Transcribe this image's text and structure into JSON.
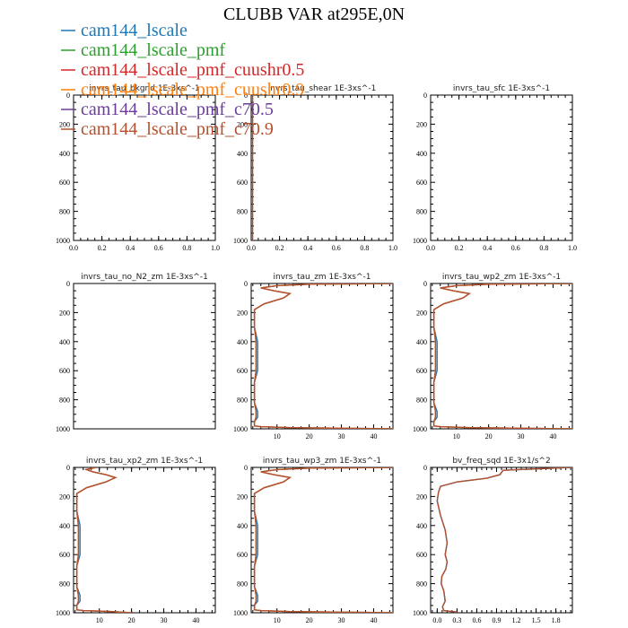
{
  "figure": {
    "title": "CLUBB VAR at295E,0N"
  },
  "colors": {
    "cam144_lscale": "#1f77b4",
    "cam144_lscale_pmf": "#2ca02c",
    "cam144_lscale_pmf_cuushr0.5": "#d62728",
    "cam144_lscale_pmf_cuushr0.9": "#ff7f0e",
    "cam144_lscale_pmf_c70.5": "#6a3d9a",
    "cam144_lscale_pmf_c70.9": "#b5502f"
  },
  "legend": [
    {
      "name": "cam144_lscale",
      "color": "#1f77b4"
    },
    {
      "name": "cam144_lscale_pmf",
      "color": "#2ca02c"
    },
    {
      "name": "cam144_lscale_pmf_cuushr0.5",
      "color": "#d62728"
    },
    {
      "name": "cam144_lscale_pmf_cuushr0.9",
      "color": "#ff7f0e"
    },
    {
      "name": "cam144_lscale_pmf_c70.5",
      "color": "#6a3d9a"
    },
    {
      "name": "cam144_lscale_pmf_c70.9",
      "color": "#b5502f"
    }
  ],
  "chart_data": [
    {
      "type": "line",
      "title": "invrs_tau_bkgnd   1E-3xs^-1",
      "xlim": [
        0,
        1
      ],
      "ylim": [
        1000,
        0
      ],
      "xticks": [
        "0.0",
        "0.2",
        "0.4",
        "0.6",
        "0.8",
        "1.0"
      ],
      "yticks": [
        "0",
        "200",
        "400",
        "600",
        "800",
        "1000"
      ],
      "series": []
    },
    {
      "type": "line",
      "title": "invrs_tau_shear   1E-3xs^-1",
      "xlim": [
        0,
        1
      ],
      "ylim": [
        1000,
        0
      ],
      "xticks": [
        "0.0",
        "0.2",
        "0.4",
        "0.6",
        "0.8",
        "1.0"
      ],
      "yticks": [
        "0",
        "200",
        "400",
        "600",
        "800",
        "1000"
      ],
      "series": [
        {
          "name": "cam144_lscale_pmf_c70.9",
          "x": [
            0.01,
            0.01
          ],
          "y": [
            0,
            1000
          ]
        }
      ]
    },
    {
      "type": "line",
      "title": "invrs_tau_sfc   1E-3xs^-1",
      "xlim": [
        0,
        1
      ],
      "ylim": [
        1000,
        0
      ],
      "xticks": [
        "0.0",
        "0.2",
        "0.4",
        "0.6",
        "0.8",
        "1.0"
      ],
      "yticks": [
        "0",
        "200",
        "400",
        "600",
        "800",
        "1000"
      ],
      "series": []
    },
    {
      "type": "line",
      "title": "invrs_tau_no_N2_zm   1E-3xs^-1",
      "xlim": [
        0,
        1
      ],
      "ylim": [
        1000,
        0
      ],
      "xticks": [],
      "yticks": [
        "0",
        "200",
        "400",
        "600",
        "800",
        "1000"
      ],
      "series": []
    },
    {
      "type": "line",
      "title": "invrs_tau_zm   1E-3xs^-1",
      "xlim": [
        2,
        46
      ],
      "ylim": [
        1000,
        0
      ],
      "xticks": [
        "10",
        "20",
        "30",
        "40"
      ],
      "yticks": [
        "0",
        "200",
        "400",
        "600",
        "800",
        "1000"
      ],
      "series": [
        {
          "name": "cam144_lscale",
          "x": [
            46,
            20,
            10,
            5,
            9,
            14,
            12,
            6,
            3,
            3,
            3,
            4,
            4,
            4,
            3,
            3,
            3,
            4,
            4,
            3,
            3,
            3,
            5,
            14,
            46
          ],
          "y": [
            0,
            5,
            15,
            30,
            50,
            70,
            100,
            140,
            180,
            220,
            300,
            400,
            500,
            600,
            680,
            760,
            820,
            880,
            920,
            950,
            970,
            980,
            985,
            992,
            1000
          ]
        },
        {
          "name": "cam144_lscale_pmf_cuushr0.9",
          "x": [
            46,
            20,
            10,
            5,
            9,
            14,
            12,
            6,
            3,
            3,
            3,
            3.5,
            3.5,
            3.5,
            3,
            3,
            3,
            3.5,
            3.5,
            3,
            3,
            3,
            5,
            14,
            46
          ],
          "y": [
            0,
            5,
            15,
            30,
            50,
            70,
            100,
            140,
            180,
            220,
            300,
            400,
            500,
            600,
            680,
            760,
            820,
            880,
            920,
            950,
            970,
            980,
            985,
            992,
            1000
          ]
        },
        {
          "name": "cam144_lscale_pmf_c70.9",
          "x": [
            46,
            20,
            10,
            5,
            9,
            14,
            12,
            6,
            3,
            3,
            3,
            3.5,
            3.5,
            3.5,
            3,
            3,
            3,
            3.5,
            3.5,
            3,
            3,
            3,
            5,
            14,
            46
          ],
          "y": [
            0,
            5,
            15,
            30,
            50,
            70,
            100,
            140,
            180,
            220,
            300,
            400,
            500,
            600,
            680,
            760,
            820,
            880,
            920,
            950,
            970,
            980,
            985,
            992,
            1000
          ]
        }
      ]
    },
    {
      "type": "line",
      "title": "invrs_tau_wp2_zm   1E-3xs^-1",
      "xlim": [
        2,
        46
      ],
      "ylim": [
        1000,
        0
      ],
      "xticks": [
        "10",
        "20",
        "30",
        "40"
      ],
      "yticks": [
        "0",
        "200",
        "400",
        "600",
        "800",
        "1000"
      ],
      "series": [
        {
          "name": "cam144_lscale",
          "x": [
            46,
            20,
            10,
            5,
            9,
            14,
            12,
            6,
            3,
            3,
            3,
            4,
            4,
            4,
            3,
            3,
            3,
            4,
            4,
            3,
            3,
            3,
            5,
            14,
            46
          ],
          "y": [
            0,
            5,
            15,
            30,
            50,
            70,
            100,
            140,
            180,
            220,
            300,
            400,
            500,
            600,
            680,
            760,
            820,
            880,
            920,
            950,
            970,
            980,
            985,
            992,
            1000
          ]
        },
        {
          "name": "cam144_lscale_pmf_cuushr0.9",
          "x": [
            46,
            20,
            10,
            5,
            9,
            14,
            12,
            6,
            3,
            3,
            3,
            3.5,
            3.5,
            3.5,
            3,
            3,
            3,
            3.5,
            3.5,
            3,
            3,
            3,
            5,
            14,
            46
          ],
          "y": [
            0,
            5,
            15,
            30,
            50,
            70,
            100,
            140,
            180,
            220,
            300,
            400,
            500,
            600,
            680,
            760,
            820,
            880,
            920,
            950,
            970,
            980,
            985,
            992,
            1000
          ]
        },
        {
          "name": "cam144_lscale_pmf_c70.9",
          "x": [
            46,
            20,
            10,
            5,
            9,
            14,
            12,
            6,
            3,
            3,
            3,
            3.5,
            3.5,
            3.5,
            3,
            3,
            3,
            3.5,
            3.5,
            3,
            3,
            3,
            5,
            14,
            46
          ],
          "y": [
            0,
            5,
            15,
            30,
            50,
            70,
            100,
            140,
            180,
            220,
            300,
            400,
            500,
            600,
            680,
            760,
            820,
            880,
            920,
            950,
            970,
            980,
            985,
            992,
            1000
          ]
        }
      ]
    },
    {
      "type": "line",
      "title": "invrs_tau_xp2_zm   1E-3xs^-1",
      "xlim": [
        2,
        46
      ],
      "ylim": [
        1000,
        0
      ],
      "xticks": [
        "10",
        "20",
        "30",
        "40"
      ],
      "yticks": [
        "0",
        "200",
        "400",
        "600",
        "800",
        "1000"
      ],
      "series": [
        {
          "name": "cam144_lscale",
          "x": [
            9,
            8,
            6,
            8,
            12,
            15,
            12,
            6,
            3,
            3,
            3,
            4,
            4,
            4,
            3,
            3,
            3,
            4,
            4,
            3,
            3,
            3,
            5,
            14,
            20
          ],
          "y": [
            0,
            5,
            15,
            30,
            50,
            70,
            100,
            140,
            180,
            220,
            300,
            400,
            500,
            600,
            680,
            760,
            820,
            880,
            920,
            950,
            970,
            980,
            985,
            992,
            1000
          ]
        },
        {
          "name": "cam144_lscale_pmf_cuushr0.9",
          "x": [
            9,
            8,
            6,
            8,
            12,
            15,
            12,
            6,
            3,
            3,
            3,
            3.5,
            3.5,
            3.5,
            3,
            3,
            3,
            3.5,
            3.5,
            3,
            3,
            3,
            5,
            14,
            20
          ],
          "y": [
            0,
            5,
            15,
            30,
            50,
            70,
            100,
            140,
            180,
            220,
            300,
            400,
            500,
            600,
            680,
            760,
            820,
            880,
            920,
            950,
            970,
            980,
            985,
            992,
            1000
          ]
        },
        {
          "name": "cam144_lscale_pmf_c70.9",
          "x": [
            9,
            8,
            6,
            8,
            12,
            15,
            12,
            6,
            3,
            3,
            3,
            3.5,
            3.5,
            3.5,
            3,
            3,
            3,
            3.5,
            3.5,
            3,
            3,
            3,
            5,
            14,
            20
          ],
          "y": [
            0,
            5,
            15,
            30,
            50,
            70,
            100,
            140,
            180,
            220,
            300,
            400,
            500,
            600,
            680,
            760,
            820,
            880,
            920,
            950,
            970,
            980,
            985,
            992,
            1000
          ]
        }
      ]
    },
    {
      "type": "line",
      "title": "invrs_tau_wp3_zm   1E-3xs^-1",
      "xlim": [
        2,
        46
      ],
      "ylim": [
        1000,
        0
      ],
      "xticks": [
        "10",
        "20",
        "30",
        "40"
      ],
      "yticks": [
        "0",
        "200",
        "400",
        "600",
        "800",
        "1000"
      ],
      "series": [
        {
          "name": "cam144_lscale",
          "x": [
            46,
            20,
            10,
            5,
            9,
            14,
            12,
            6,
            3,
            3,
            3,
            4,
            4,
            4,
            3,
            3,
            3,
            4,
            4,
            3,
            3,
            3,
            5,
            14,
            46
          ],
          "y": [
            0,
            5,
            15,
            30,
            50,
            70,
            100,
            140,
            180,
            220,
            300,
            400,
            500,
            600,
            680,
            760,
            820,
            880,
            920,
            950,
            970,
            980,
            985,
            992,
            1000
          ]
        },
        {
          "name": "cam144_lscale_pmf_cuushr0.9",
          "x": [
            46,
            20,
            10,
            5,
            9,
            14,
            12,
            6,
            3,
            3,
            3,
            3.5,
            3.5,
            3.5,
            3,
            3,
            3,
            3.5,
            3.5,
            3,
            3,
            3,
            5,
            14,
            46
          ],
          "y": [
            0,
            5,
            15,
            30,
            50,
            70,
            100,
            140,
            180,
            220,
            300,
            400,
            500,
            600,
            680,
            760,
            820,
            880,
            920,
            950,
            970,
            980,
            985,
            992,
            1000
          ]
        },
        {
          "name": "cam144_lscale_pmf_c70.9",
          "x": [
            46,
            20,
            10,
            5,
            9,
            14,
            12,
            6,
            3,
            3,
            3,
            3.5,
            3.5,
            3.5,
            3,
            3,
            3,
            3.5,
            3.5,
            3,
            3,
            3,
            5,
            14,
            46
          ],
          "y": [
            0,
            5,
            15,
            30,
            50,
            70,
            100,
            140,
            180,
            220,
            300,
            400,
            500,
            600,
            680,
            760,
            820,
            880,
            920,
            950,
            970,
            980,
            985,
            992,
            1000
          ]
        }
      ]
    },
    {
      "type": "line",
      "title": "bv_freq_sqd   1E-3x1/s^2",
      "xlim": [
        -0.1,
        2.05
      ],
      "ylim": [
        1000,
        0
      ],
      "xticks": [
        "0.0",
        "0.3",
        "0.6",
        "0.9",
        "1.2",
        "1.5",
        "1.8"
      ],
      "yticks": [
        "0",
        "200",
        "400",
        "600",
        "800",
        "1000"
      ],
      "series": [
        {
          "name": "cam144_lscale",
          "x": [
            2.05,
            1.0,
            0.95,
            0.75,
            0.3,
            0.05,
            0.02,
            0.0,
            0.05,
            0.12,
            0.15,
            0.12,
            0.15,
            0.13,
            0.07,
            0.06,
            0.1,
            0.12,
            0.08,
            0.1,
            0.3
          ],
          "y": [
            0,
            20,
            50,
            75,
            100,
            130,
            170,
            230,
            330,
            430,
            520,
            600,
            650,
            700,
            750,
            800,
            850,
            920,
            960,
            985,
            995
          ]
        },
        {
          "name": "cam144_lscale_pmf_c70.9",
          "x": [
            2.05,
            1.0,
            0.95,
            0.75,
            0.3,
            0.05,
            0.02,
            0.0,
            0.05,
            0.12,
            0.15,
            0.12,
            0.15,
            0.13,
            0.07,
            0.06,
            0.1,
            0.12,
            0.08,
            0.1,
            0.3
          ],
          "y": [
            0,
            20,
            50,
            75,
            100,
            130,
            170,
            230,
            330,
            430,
            520,
            600,
            650,
            700,
            750,
            800,
            850,
            920,
            960,
            985,
            995
          ]
        }
      ]
    }
  ]
}
